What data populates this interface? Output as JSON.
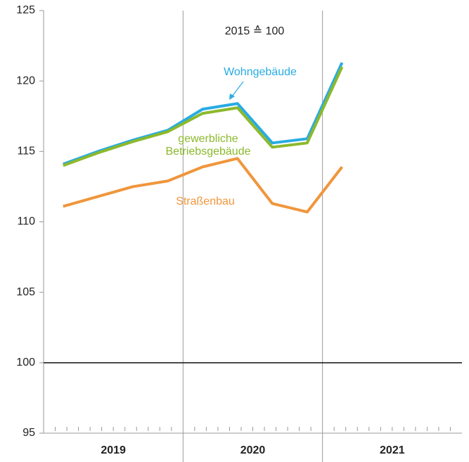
{
  "chart_data": {
    "type": "line",
    "annotation": "2015 ≙ 100",
    "x_groups": [
      "2019",
      "2020",
      "2021"
    ],
    "categories": [
      null,
      null,
      null,
      null,
      null,
      null,
      null,
      null,
      null
    ],
    "series": [
      {
        "name": "Wohngebäude",
        "color": "#29abe2",
        "values": [
          114.1,
          115.0,
          115.8,
          116.5,
          118.0,
          118.4,
          115.6,
          115.9,
          121.3
        ]
      },
      {
        "name": [
          "gewerbliche",
          "Betriebsgebäude"
        ],
        "color": "#8cb92c",
        "values": [
          114.0,
          114.9,
          115.7,
          116.4,
          117.7,
          118.1,
          115.3,
          115.6,
          121.0
        ]
      },
      {
        "name": "Straßenbau",
        "color": "#f0963c",
        "values": [
          111.1,
          111.8,
          112.5,
          112.9,
          113.9,
          114.5,
          111.3,
          110.7,
          113.9
        ]
      }
    ],
    "ylim": [
      95,
      125
    ],
    "yticks": [
      95,
      100,
      105,
      110,
      115,
      120,
      125
    ],
    "reference_line": 100
  }
}
